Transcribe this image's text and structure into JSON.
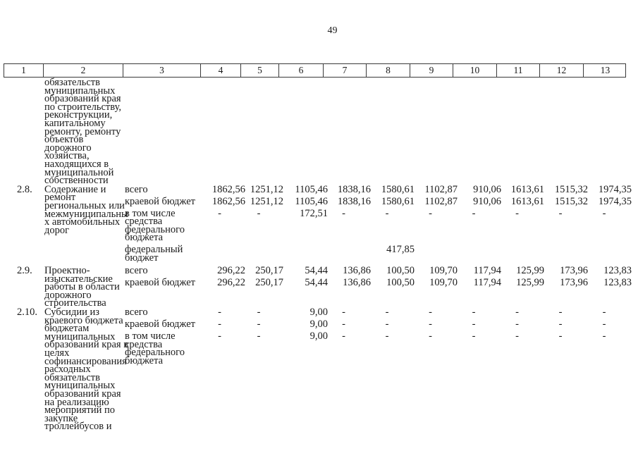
{
  "page_number": "49",
  "table": {
    "header_cols": [
      "1",
      "2",
      "3",
      "4",
      "5",
      "6",
      "7",
      "8",
      "9",
      "10",
      "11",
      "12",
      "13"
    ],
    "rows": [
      {
        "num": "",
        "name_lines": [
          "обязательств",
          "муниципальных",
          "образований края",
          "по строительству,",
          "реконструкции,",
          "капитальному",
          "ремонту, ремонту",
          "объектов",
          "дорожного",
          "хозяйства,",
          "находящихся в",
          "муниципальной",
          "собственности"
        ],
        "entries": []
      },
      {
        "num": "2.8.",
        "name_lines": [
          "Содержание и",
          "ремонт",
          "региональных или",
          "межмуниципальны",
          "х автомобильных",
          "дорог"
        ],
        "entries": [
          {
            "label_lines": [
              "всего"
            ],
            "values": [
              "1862,56",
              "1251,12",
              "1105,46",
              "1838,16",
              "1580,61",
              "1102,87",
              "910,06",
              "1613,61",
              "1515,32",
              "1974,35"
            ]
          },
          {
            "label_lines": [
              "краевой бюджет"
            ],
            "values": [
              "1862,56",
              "1251,12",
              "1105,46",
              "1838,16",
              "1580,61",
              "1102,87",
              "910,06",
              "1613,61",
              "1515,32",
              "1974,35"
            ]
          },
          {
            "label_lines": [
              "в том числе",
              "средства",
              "федерального",
              "бюджета"
            ],
            "values": [
              "-",
              "-",
              "172,51",
              "-",
              "-",
              "-",
              "-",
              "-",
              "-",
              "-"
            ]
          },
          {
            "label_lines": [
              "федеральный",
              "бюджет"
            ],
            "values": [
              "",
              "",
              "",
              "",
              "417,85",
              "",
              "",
              "",
              "",
              ""
            ]
          }
        ]
      },
      {
        "num": "2.9.",
        "name_lines": [
          "Проектно-",
          "изыскательские",
          "работы в области",
          "дорожного",
          "строительства"
        ],
        "entries": [
          {
            "label_lines": [
              "всего"
            ],
            "values": [
              "296,22",
              "250,17",
              "54,44",
              "136,86",
              "100,50",
              "109,70",
              "117,94",
              "125,99",
              "173,96",
              "123,83"
            ]
          },
          {
            "label_lines": [
              "краевой бюджет"
            ],
            "values": [
              "296,22",
              "250,17",
              "54,44",
              "136,86",
              "100,50",
              "109,70",
              "117,94",
              "125,99",
              "173,96",
              "123,83"
            ]
          }
        ]
      },
      {
        "num": "2.10.",
        "name_lines": [
          "Субсидии из",
          "краевого бюджета",
          "бюджетам",
          "муниципальных",
          "образований края в",
          "целях",
          "софинансирования",
          "расходных",
          "обязательств",
          "муниципальных",
          "образований края",
          "на реализацию",
          "мероприятий по",
          "закупке",
          "троллейбусов и"
        ],
        "entries": [
          {
            "label_lines": [
              "всего"
            ],
            "values": [
              "-",
              "-",
              "9,00",
              "-",
              "-",
              "-",
              "-",
              "-",
              "-",
              "-"
            ]
          },
          {
            "label_lines": [
              "краевой бюджет"
            ],
            "values": [
              "-",
              "-",
              "9,00",
              "-",
              "-",
              "-",
              "-",
              "-",
              "-",
              "-"
            ]
          },
          {
            "label_lines": [
              "в том числе",
              "средства",
              "федерального",
              "бюджета"
            ],
            "values": [
              "-",
              "-",
              "9,00",
              "-",
              "-",
              "-",
              "-",
              "-",
              "-",
              "-"
            ]
          }
        ]
      }
    ]
  }
}
